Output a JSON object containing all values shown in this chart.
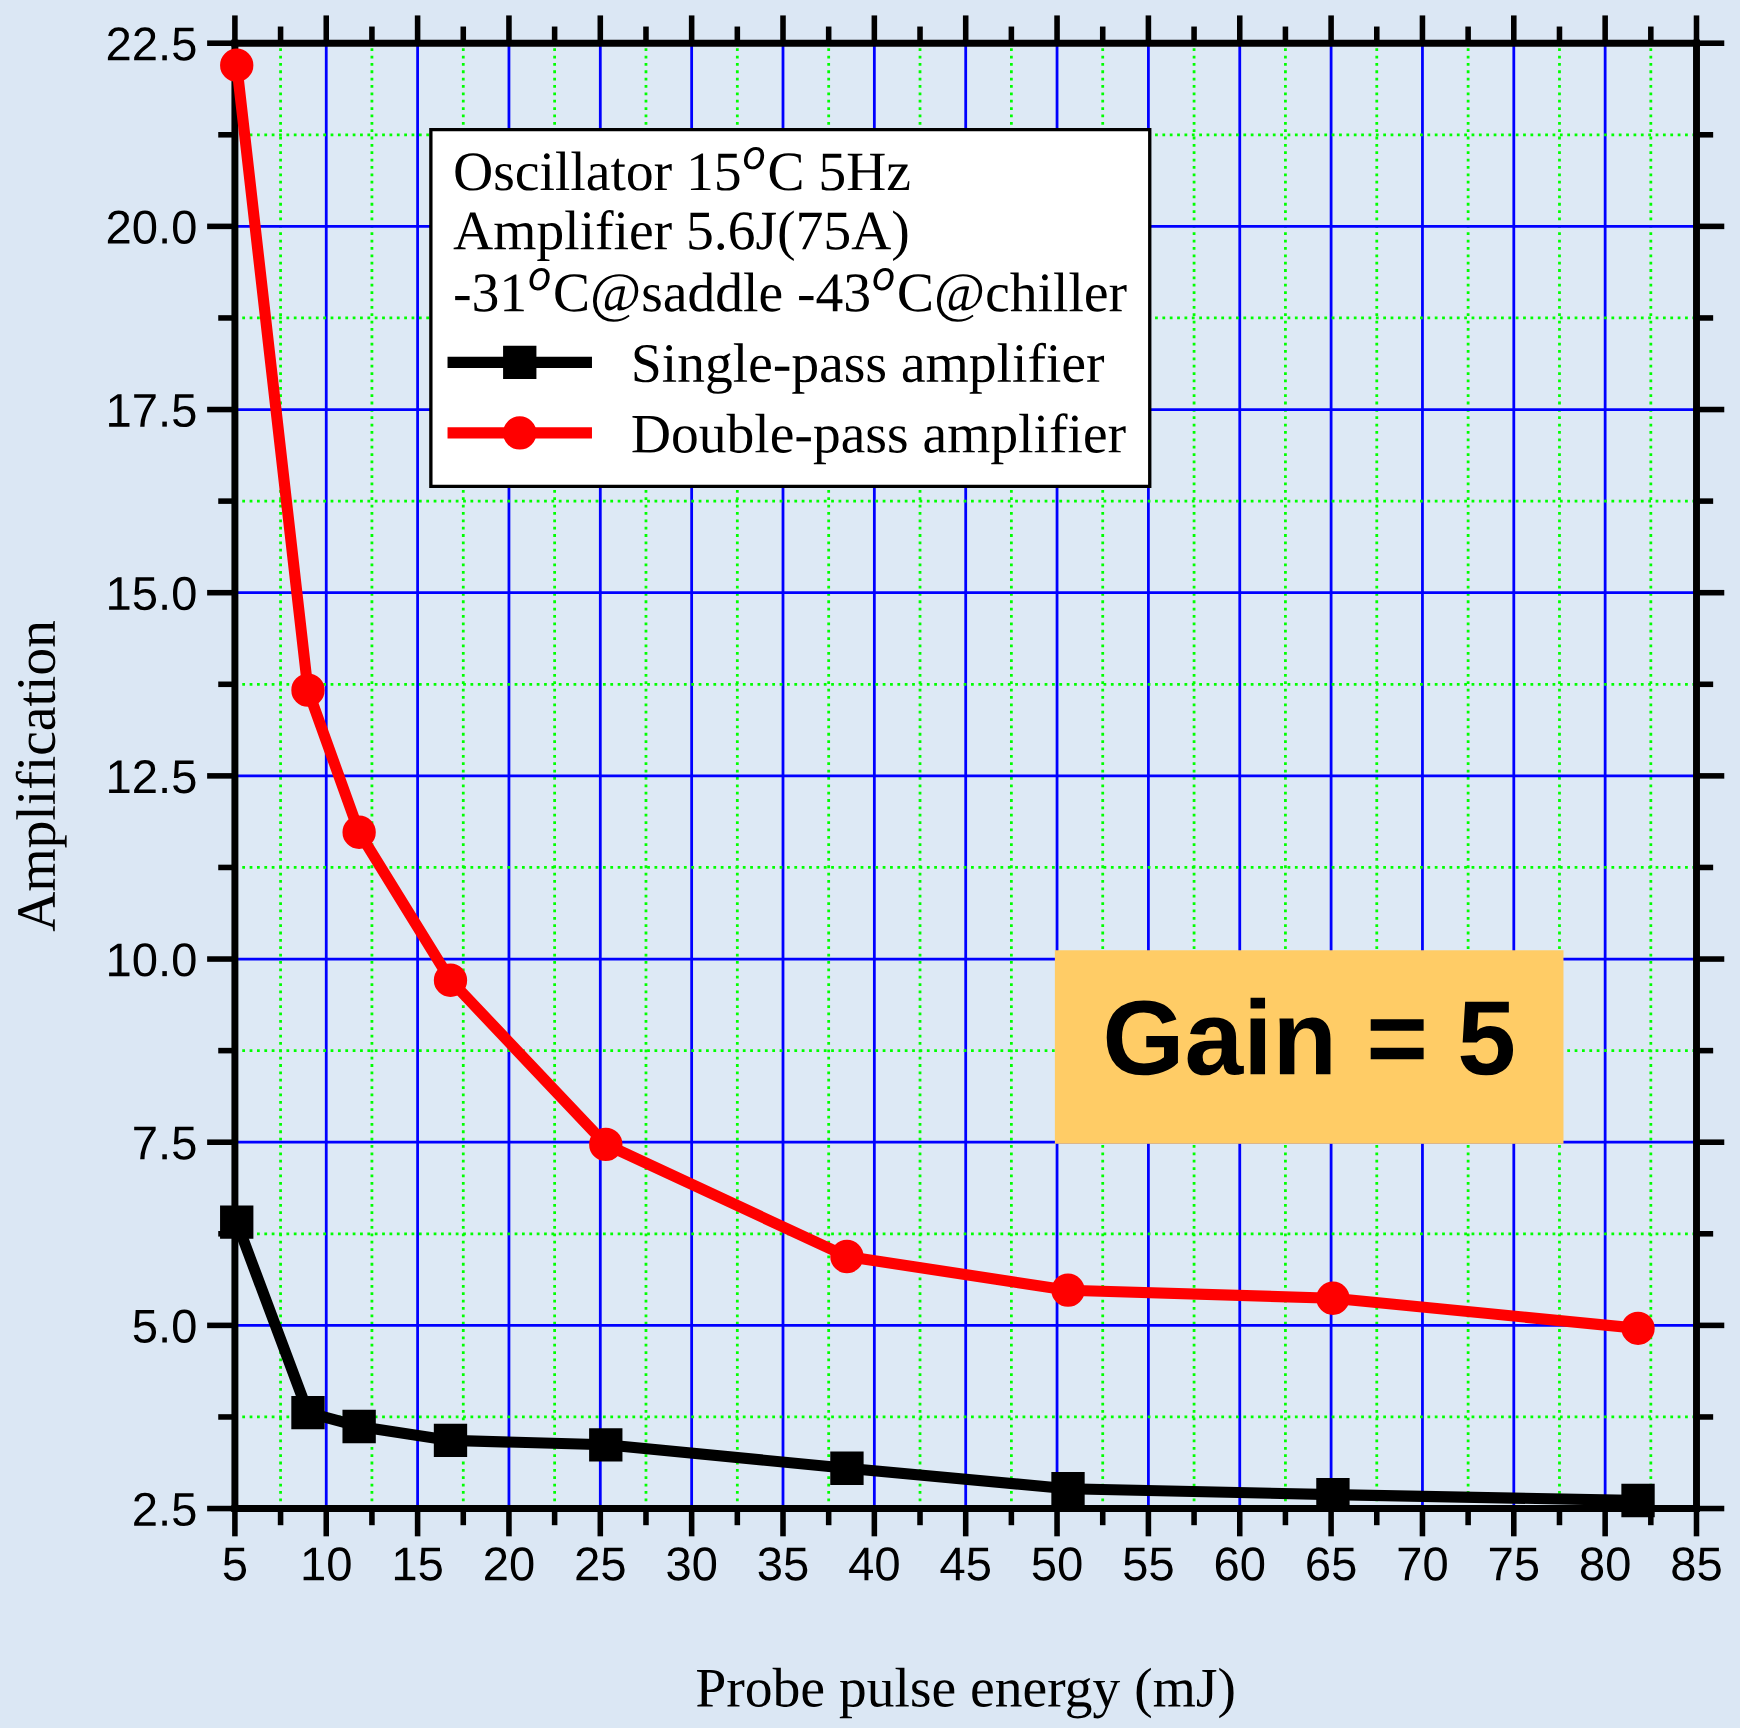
{
  "chart_data": {
    "type": "line",
    "xlabel": "Probe pulse energy (mJ)",
    "ylabel": "Amplification",
    "legend_title": "Oscillator 15$^{o}$C 5Hz\nAmplifier 5.6J(75A)\n-31$^{o}$C@saddle -43$^{o}$C@chiller",
    "x": [
      5.1,
      9.0,
      11.8,
      16.8,
      25.3,
      38.5,
      50.6,
      65.1,
      81.8
    ],
    "series": [
      {
        "name": "Single-pass amplifier",
        "color": "#000000",
        "marker": "square",
        "values": [
          6.41,
          3.81,
          3.62,
          3.43,
          3.37,
          3.05,
          2.77,
          2.69,
          2.61
        ]
      },
      {
        "name": "Double-pass amplifier",
        "color": "#ff0000",
        "marker": "circle",
        "values": [
          22.2,
          13.67,
          11.73,
          9.71,
          7.47,
          5.94,
          5.48,
          5.37,
          4.96
        ]
      }
    ],
    "annotations": [
      "Gain = 5"
    ],
    "xlim": [
      5,
      85
    ],
    "xticks": [
      5,
      {
        "value": 7.5,
        "label": null
      },
      10,
      {
        "value": 12.5,
        "label": null
      },
      15,
      {
        "value": 17.5,
        "label": null
      },
      20,
      {
        "value": 22.5,
        "label": null
      },
      25,
      {
        "value": 27.5,
        "label": null
      },
      30,
      {
        "value": 32.5,
        "label": null
      },
      35,
      {
        "value": 37.5,
        "label": null
      },
      40,
      {
        "value": 42.5,
        "label": null
      },
      45,
      {
        "value": 47.5,
        "label": null
      },
      50,
      {
        "value": 52.5,
        "label": null
      },
      55,
      {
        "value": 57.5,
        "label": null
      },
      60,
      {
        "value": 62.5,
        "label": null
      },
      65,
      {
        "value": 67.5,
        "label": null
      },
      70,
      {
        "value": 72.5,
        "label": null
      },
      75,
      {
        "value": 77.5,
        "label": null
      },
      80,
      {
        "value": 82.5,
        "label": null
      },
      85
    ],
    "ylim": [
      2.5,
      22.5
    ],
    "yticks": [
      2.5,
      {
        "value": 3.75,
        "label": null
      },
      {
        "value": 5,
        "label": "5.0"
      },
      {
        "value": 6.25,
        "label": null
      },
      7.5,
      {
        "value": 8.75,
        "label": null
      },
      {
        "value": 10,
        "label": "10.0"
      },
      {
        "value": 11.25,
        "label": null
      },
      12.5,
      {
        "value": 13.75,
        "label": null
      },
      {
        "value": 15,
        "label": "15.0"
      },
      {
        "value": 16.25,
        "label": null
      },
      17.5,
      {
        "value": 18.75,
        "label": null
      },
      {
        "value": 20,
        "label": "20.0"
      },
      {
        "value": 21.25,
        "label": null
      },
      22.5
    ],
    "grid": true,
    "legend": "top",
    "line_style": "solid"
  }
}
